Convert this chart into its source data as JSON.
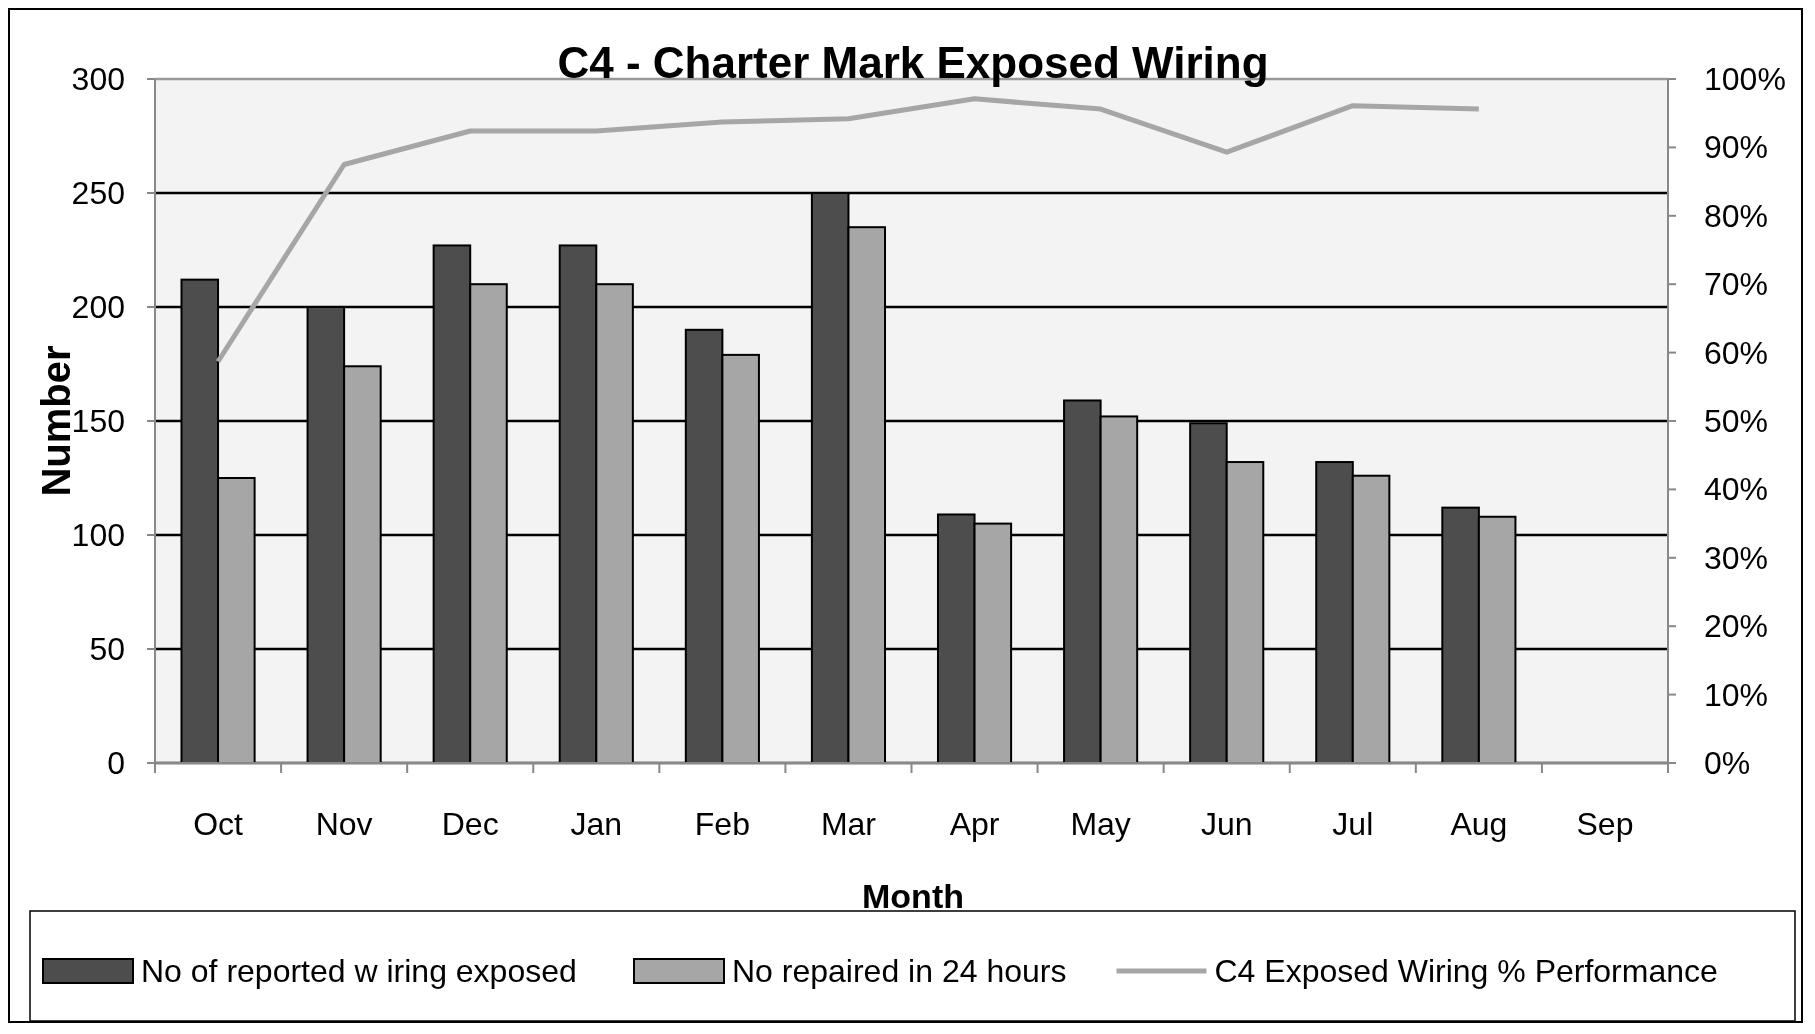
{
  "chart_data": {
    "type": "bar",
    "title": "C4 - Charter Mark Exposed Wiring",
    "xlabel": "Month",
    "ylabel": "Number",
    "categories": [
      "Oct",
      "Nov",
      "Dec",
      "Jan",
      "Feb",
      "Mar",
      "Apr",
      "May",
      "Jun",
      "Jul",
      "Aug",
      "Sep"
    ],
    "series": [
      {
        "name": "No of reported w iring exposed",
        "color": "#4d4d4d",
        "values": [
          212,
          200,
          227,
          227,
          190,
          250,
          109,
          159,
          149,
          132,
          112,
          null
        ]
      },
      {
        "name": "No repaired in 24 hours",
        "color": "#a6a6a6",
        "values": [
          125,
          174,
          210,
          210,
          179,
          235,
          105,
          152,
          132,
          126,
          108,
          null
        ]
      },
      {
        "name": "C4 Exposed Wiring % Performance",
        "type": "line",
        "axis": "y2",
        "color": "#a6a6a6",
        "values": [
          58.7,
          87.5,
          92.4,
          92.4,
          93.7,
          94.2,
          97.1,
          95.6,
          89.3,
          96.1,
          95.6,
          null
        ]
      }
    ],
    "ylim": [
      0,
      300
    ],
    "yticks": [
      0,
      50,
      100,
      150,
      200,
      250,
      300
    ],
    "y2lim": [
      0,
      100
    ],
    "y2ticks": [
      {
        "value": 0,
        "label": "0%"
      },
      {
        "value": 10,
        "label": "10%"
      },
      {
        "value": 20,
        "label": "20%"
      },
      {
        "value": 30,
        "label": "30%"
      },
      {
        "value": 40,
        "label": "40%"
      },
      {
        "value": 50,
        "label": "50%"
      },
      {
        "value": 60,
        "label": "60%"
      },
      {
        "value": 70,
        "label": "70%"
      },
      {
        "value": 80,
        "label": "80%"
      },
      {
        "value": 90,
        "label": "90%"
      },
      {
        "value": 100,
        "label": "100%"
      }
    ],
    "grid": "y",
    "legend": "bottom",
    "marker": "none"
  }
}
